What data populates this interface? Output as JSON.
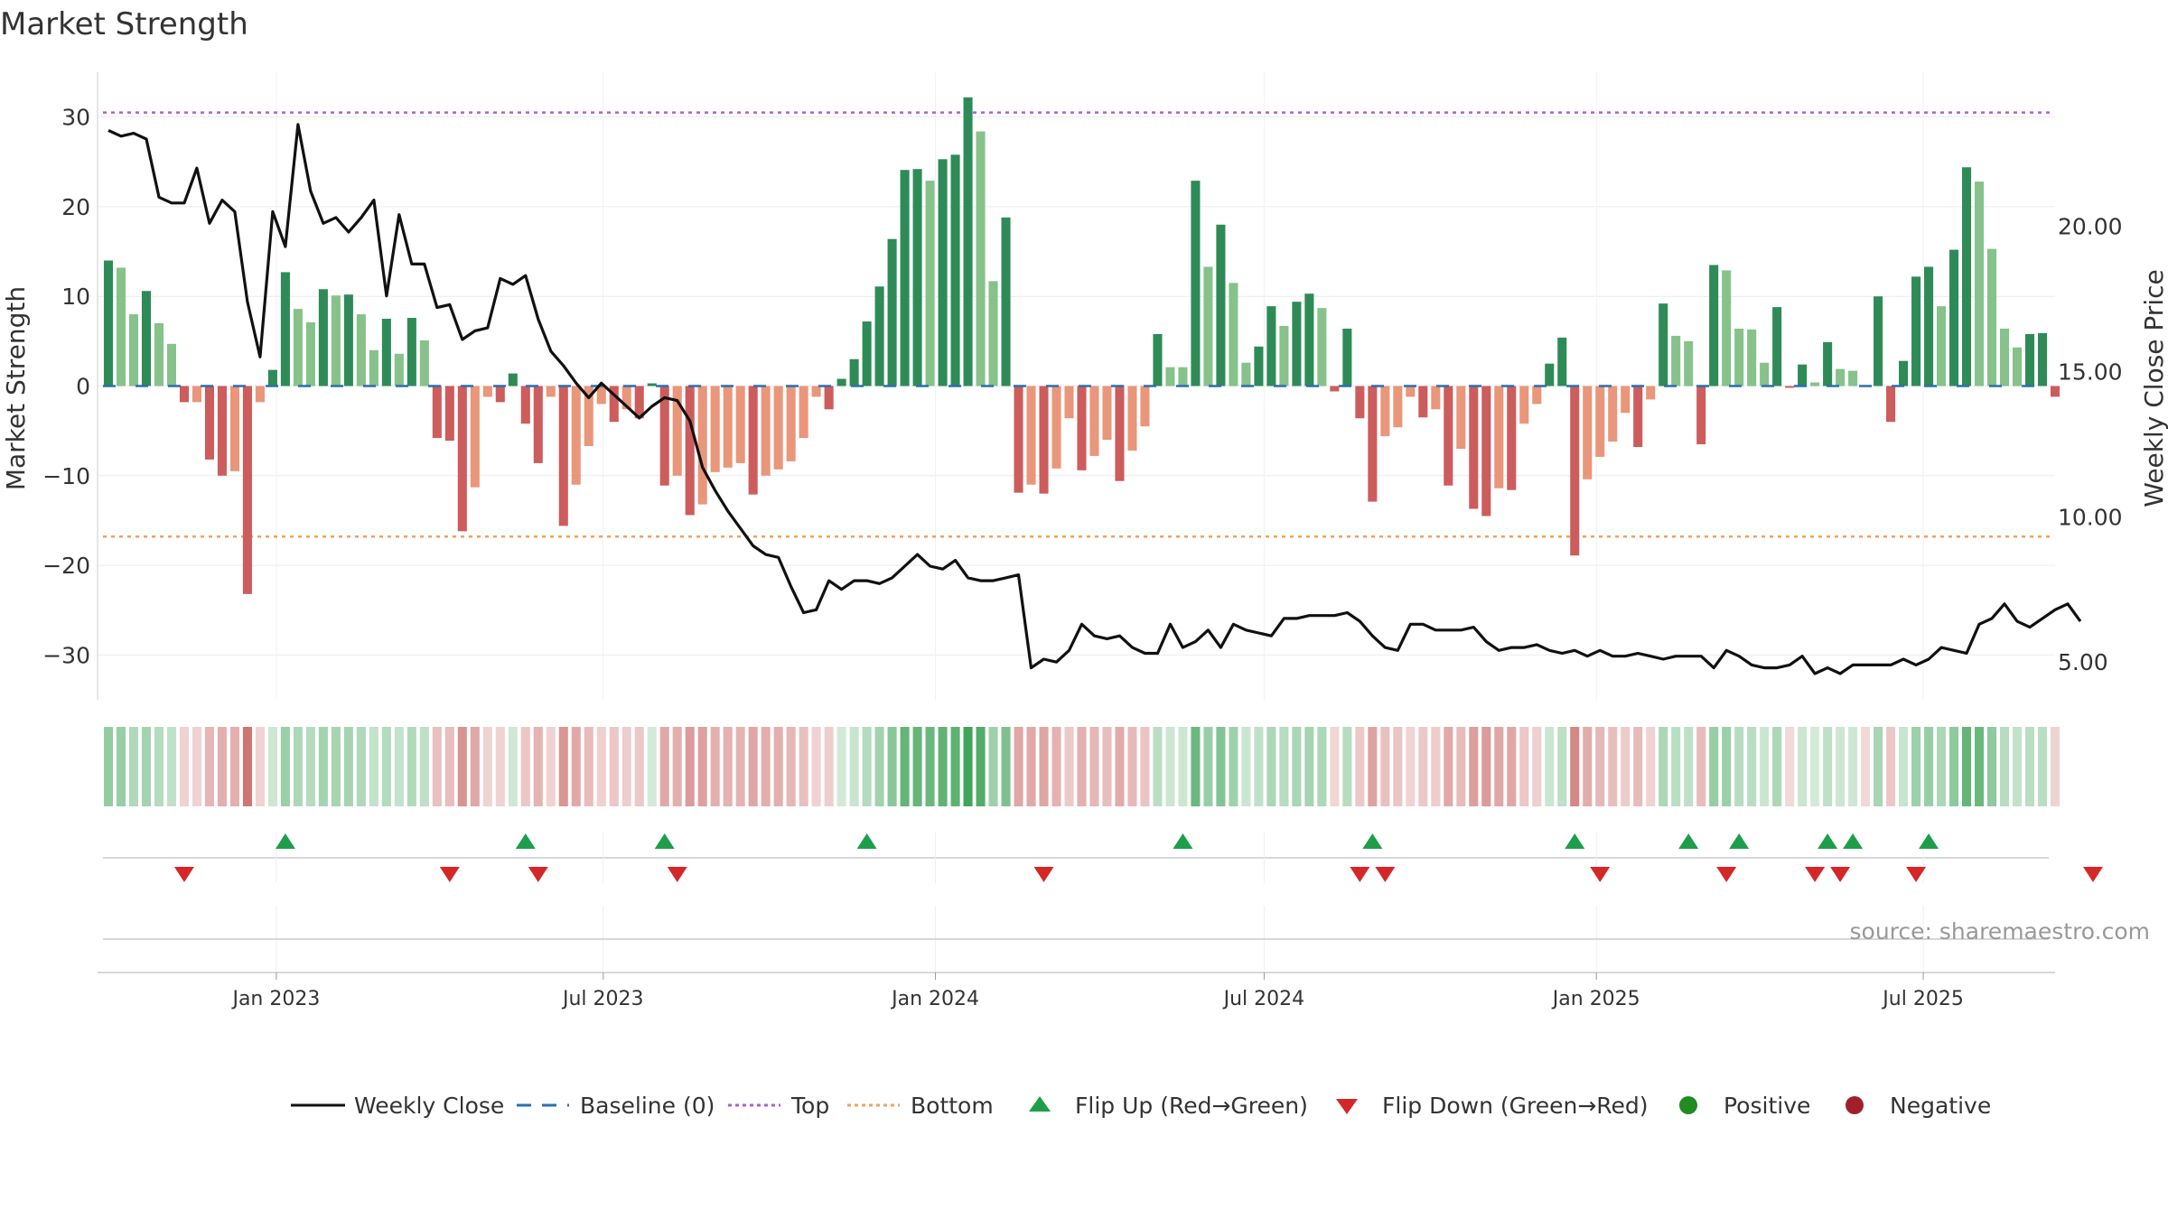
{
  "chart_data": {
    "type": "bar",
    "title": "Market Strength",
    "ylabel_left": "Market Strength",
    "ylabel_right": "Weekly Close Price",
    "ylim_left": [
      -35,
      35
    ],
    "ylim_right": [
      3.7,
      25.3
    ],
    "yticks_left": [
      30,
      20,
      10,
      0,
      -10,
      -20,
      -30
    ],
    "ytick_labels_left": [
      "30",
      "20",
      "10",
      "0",
      "−10",
      "−20",
      "−30"
    ],
    "yticks_right": [
      20,
      15,
      10,
      5
    ],
    "ytick_labels_right": [
      "20.00",
      "15.00",
      "10.00",
      "5.00"
    ],
    "xlim_dates": [
      "2022-09-24",
      "2025-09-12"
    ],
    "x_tick_dates": [
      "2023-01-01",
      "2023-07-01",
      "2024-01-01",
      "2024-07-01",
      "2025-01-01",
      "2025-07-01"
    ],
    "x_tick_labels": [
      "Jan 2023",
      "Jul 2023",
      "Jan 2024",
      "Jul 2024",
      "Jan 2025",
      "Jul 2025"
    ],
    "start_date": "2022-09-30",
    "frequency": "weekly",
    "top_line": 30.5,
    "bottom_line": -16.8,
    "baseline": 0,
    "grid": true,
    "legend_position": "bottom-center",
    "series": [
      {
        "name": "Weekly Close",
        "type": "line",
        "axis": "right",
        "values": [
          23.3,
          23.1,
          23.2,
          23.0,
          21.0,
          20.8,
          20.8,
          22.0,
          20.1,
          20.9,
          20.5,
          17.4,
          15.5,
          20.5,
          19.3,
          23.5,
          21.2,
          20.1,
          20.3,
          19.8,
          20.3,
          20.9,
          17.6,
          20.4,
          18.7,
          18.7,
          17.2,
          17.3,
          16.1,
          16.4,
          16.5,
          18.2,
          18.0,
          18.3,
          16.8,
          15.7,
          15.2,
          14.6,
          14.1,
          14.6,
          14.2,
          13.8,
          13.4,
          13.8,
          14.1,
          14.0,
          13.3,
          11.7,
          10.9,
          10.2,
          9.6,
          9.0,
          8.7,
          8.6,
          7.6,
          6.7,
          6.8,
          7.8,
          7.5,
          7.8,
          7.8,
          7.7,
          7.9,
          8.3,
          8.7,
          8.3,
          8.2,
          8.5,
          7.9,
          7.8,
          7.8,
          7.9,
          8.0,
          4.8,
          5.1,
          5.0,
          5.4,
          6.3,
          5.9,
          5.8,
          5.9,
          5.5,
          5.3,
          5.3,
          6.3,
          5.5,
          5.7,
          6.1,
          5.5,
          6.3,
          6.1,
          6.0,
          5.9,
          6.5,
          6.5,
          6.6,
          6.6,
          6.6,
          6.7,
          6.4,
          5.9,
          5.5,
          5.4,
          6.3,
          6.3,
          6.1,
          6.1,
          6.1,
          6.2,
          5.7,
          5.4,
          5.5,
          5.5,
          5.6,
          5.4,
          5.3,
          5.4,
          5.2,
          5.4,
          5.2,
          5.2,
          5.3,
          5.2,
          5.1,
          5.2,
          5.2,
          5.2,
          4.8,
          5.4,
          5.2,
          4.9,
          4.8,
          4.8,
          4.9,
          5.2,
          4.6,
          4.8,
          4.6,
          4.9,
          4.9,
          4.9,
          4.9,
          5.1,
          4.9,
          5.1,
          5.5,
          5.4,
          5.3,
          6.3,
          6.5,
          7.0,
          6.4,
          6.2,
          6.5,
          6.8,
          7.0,
          6.4
        ]
      },
      {
        "name": "Market Strength",
        "type": "bar",
        "axis": "left",
        "values": [
          14.0,
          13.2,
          8.0,
          10.6,
          7.0,
          4.7,
          -1.8,
          -1.8,
          -8.2,
          -10.0,
          -9.5,
          -23.2,
          -1.8,
          1.8,
          12.7,
          8.6,
          7.1,
          10.8,
          10.1,
          10.2,
          8.0,
          4.0,
          7.5,
          3.6,
          7.6,
          5.1,
          -5.8,
          -6.1,
          -16.2,
          -11.3,
          -1.2,
          -1.8,
          1.4,
          -4.2,
          -8.6,
          -1.2,
          -15.6,
          -11.0,
          -6.7,
          -2.0,
          -4.0,
          -2.6,
          -3.6,
          0.3,
          -11.1,
          -10.0,
          -14.4,
          -13.2,
          -9.6,
          -9.1,
          -8.6,
          -12.1,
          -10.0,
          -9.3,
          -8.4,
          -5.8,
          -1.2,
          -2.6,
          0.8,
          3.0,
          7.2,
          11.1,
          16.4,
          24.1,
          24.2,
          22.9,
          25.3,
          25.8,
          32.2,
          28.4,
          11.7,
          18.8,
          -11.9,
          -11.0,
          -12.0,
          -9.2,
          -3.6,
          -9.4,
          -7.8,
          -6.0,
          -10.6,
          -7.2,
          -4.5,
          5.8,
          2.1,
          2.1,
          22.9,
          13.3,
          18.0,
          11.5,
          2.6,
          4.4,
          8.9,
          6.7,
          9.4,
          10.3,
          8.7,
          -0.6,
          6.4,
          -3.6,
          -12.9,
          -5.6,
          -4.6,
          -1.2,
          -3.5,
          -2.6,
          -11.1,
          -7.0,
          -13.7,
          -14.5,
          -11.4,
          -11.6,
          -4.2,
          -2.0,
          2.5,
          5.4,
          -18.9,
          -10.4,
          -7.9,
          -6.2,
          -3.0,
          -6.8,
          -1.5,
          9.2,
          5.6,
          5.0,
          -6.5,
          13.5,
          12.9,
          6.4,
          6.3,
          2.6,
          8.8,
          -0.2,
          2.4,
          0.4,
          4.9,
          1.9,
          1.7,
          -0.1,
          10.0,
          -4.0,
          2.8,
          12.2,
          13.3,
          8.9,
          15.2,
          24.4,
          22.8,
          15.3,
          6.4,
          4.3,
          5.8,
          5.9,
          -1.2
        ]
      }
    ],
    "flips_up_week_index": [
      14,
      33,
      44,
      60,
      85,
      100,
      116,
      125,
      129,
      136,
      138,
      144
    ],
    "flips_down_week_index": [
      6,
      27,
      34,
      45,
      74,
      99,
      101,
      118,
      128,
      135,
      137,
      143,
      157
    ],
    "heatmap_strip": {
      "description_source": "bar values",
      "positive_color": "#41a45a",
      "negative_color": "#c0504d"
    },
    "colors": {
      "line": "#111111",
      "bar_strong_positive": "#2e8b57",
      "bar_weak_positive": "#86c28a",
      "bar_strong_negative": "#cd5c5c",
      "bar_weak_negative": "#e9967a",
      "top_line": "#b05fd0",
      "bottom_line": "#f0a060",
      "baseline": "#2a6fb0",
      "flip_up": "#1e9e4a",
      "flip_down": "#d62728",
      "positive_dot": "#228b22",
      "negative_dot": "#a0202a"
    },
    "legend": [
      {
        "label": "Weekly Close",
        "kind": "line"
      },
      {
        "label": "Baseline (0)",
        "kind": "dash"
      },
      {
        "label": "Top",
        "kind": "dot-purple"
      },
      {
        "label": "Bottom",
        "kind": "dot-orange"
      },
      {
        "label": "Flip Up (Red→Green)",
        "kind": "tri-up"
      },
      {
        "label": "Flip Down (Green→Red)",
        "kind": "tri-down"
      },
      {
        "label": "Positive",
        "kind": "dot-green"
      },
      {
        "label": "Negative",
        "kind": "dot-red"
      }
    ],
    "source_note": "source: sharemaestro.com"
  }
}
